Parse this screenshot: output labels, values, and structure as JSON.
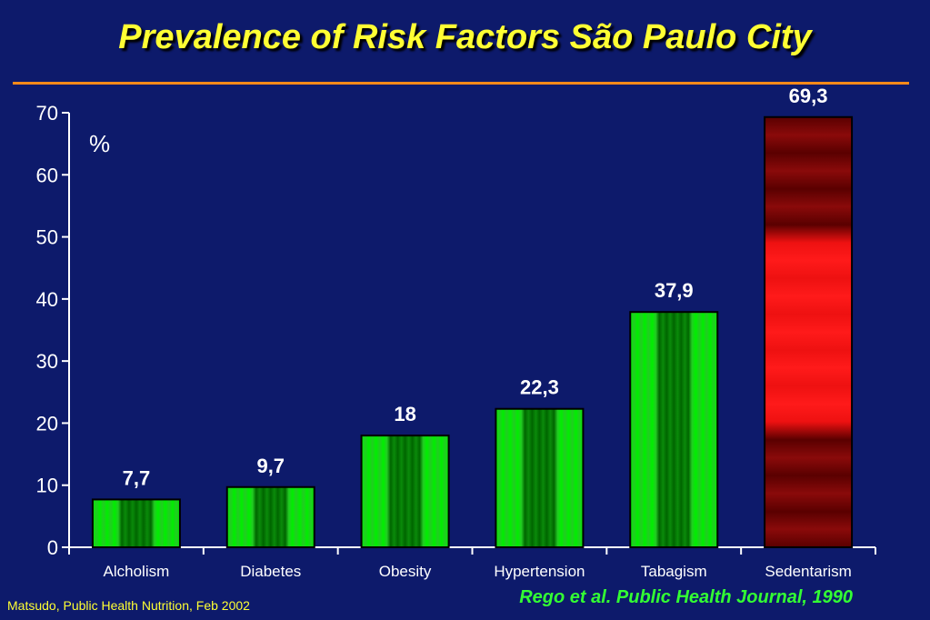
{
  "title": "Prevalence of Risk Factors São Paulo City",
  "footer": {
    "left": "Matsudo, Public Health Nutrition, Feb 2002",
    "right": "Rego et al. Public Health Journal, 1990"
  },
  "colors": {
    "background": "#0d1a6b",
    "title": "#ffff33",
    "rule": "#ff8a1a",
    "bar_green": "#00ee00",
    "bar_green_dark": "#006600",
    "bar_red": "#ff1a1a",
    "bar_red_dark": "#5a0000",
    "footer_left": "#ffff33",
    "footer_right": "#33ff33"
  },
  "chart_data": {
    "type": "bar",
    "title": "",
    "ylabel": "%",
    "xlabel": "",
    "ylim": [
      0,
      70
    ],
    "yticks": [
      0,
      10,
      20,
      30,
      40,
      50,
      60,
      70
    ],
    "categories": [
      "Alcholism",
      "Diabetes",
      "Obesity",
      "Hypertension",
      "Tabagism",
      "Sedentarism"
    ],
    "values": [
      7.7,
      9.7,
      18,
      22.3,
      37.9,
      69.3
    ],
    "value_labels": [
      "7,7",
      "9,7",
      "18",
      "22,3",
      "37,9",
      "69,3"
    ],
    "bar_colors": [
      "green",
      "green",
      "green",
      "green",
      "green",
      "red"
    ],
    "grid": false,
    "legend": "none"
  }
}
